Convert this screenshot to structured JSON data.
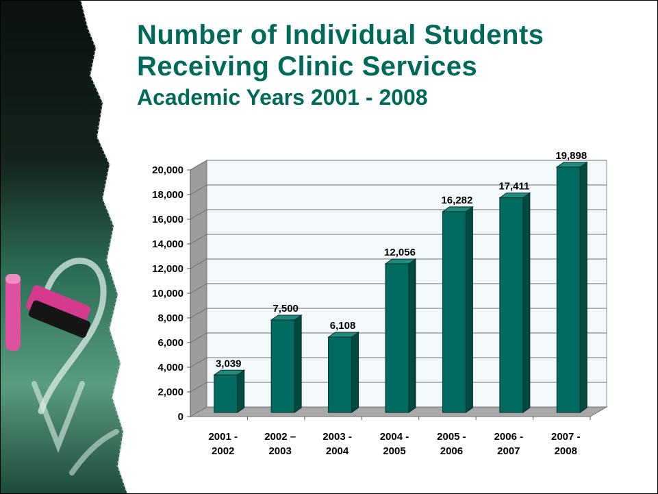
{
  "slide": {
    "title_line1": "Number of Individual Students",
    "title_line2": "Receiving Clinic Services",
    "subtitle": "Academic Years 2001 - 2008"
  },
  "colors": {
    "title": "#006a5a",
    "bar_front": "#006b60",
    "bar_side": "#004a42",
    "bar_top": "#1f8a7d",
    "plot_back": "#f3f9fb",
    "wall_side": "#9c9c9c",
    "floor": "#a8a8a8"
  },
  "chart_data": {
    "type": "bar",
    "title": "",
    "xlabel": "",
    "ylabel": "",
    "ylim": [
      0,
      20000
    ],
    "yticks": [
      "0",
      "2,000",
      "4,000",
      "6,000",
      "8,000",
      "10,000",
      "12,000",
      "14,000",
      "16,000",
      "18,000",
      "20,000"
    ],
    "categories": [
      [
        "2001 -",
        "2002"
      ],
      [
        "2002 –",
        "2003"
      ],
      [
        "2003 -",
        "2004"
      ],
      [
        "2004 -",
        "2005"
      ],
      [
        "2005 -",
        "2006"
      ],
      [
        "2006 -",
        "2007"
      ],
      [
        "2007 -",
        "2008"
      ]
    ],
    "values": [
      3039,
      7500,
      6108,
      12056,
      16282,
      17411,
      19898
    ],
    "data_labels": [
      "3,039",
      "7,500",
      "6,108",
      "12,056",
      "16,282",
      "17,411",
      "19,898"
    ],
    "grid": true,
    "legend": "none",
    "style": "3d"
  }
}
